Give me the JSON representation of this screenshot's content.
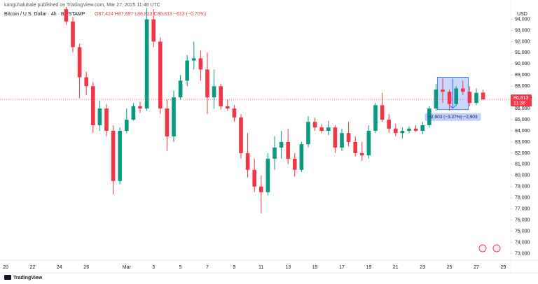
{
  "chart_data": {
    "type": "candlestick",
    "publisher": "kanguhalubale published on TradingView.com, Mar 27, 2025 11:48 UTC",
    "symbol": "Bitcoin / U.S. Dollar · 4h · BITSTAMP",
    "ohlc_text": "O87,424 H87,697 L86,813 C86,813 −613 (−0.70%)",
    "currency": "USD",
    "brand": "TradingView",
    "last_price_label": "86,813",
    "countdown": "11:38",
    "up_color": "#089981",
    "down_color": "#f23645",
    "measure": {
      "label": "−2,903 (−3.27%) −2,903",
      "high": 88800,
      "low": 85900,
      "color": "#2962ff"
    },
    "categories": [
      "20",
      null,
      null,
      null,
      "22",
      null,
      null,
      null,
      "24",
      null,
      null,
      null,
      "26",
      null,
      null,
      null,
      null,
      null,
      "Mar",
      null,
      null,
      null,
      "3",
      null,
      null,
      null,
      "5",
      null,
      null,
      null,
      "7",
      null,
      null,
      null,
      "9",
      null,
      null,
      null,
      "11",
      null,
      null,
      null,
      "13",
      null,
      null,
      null,
      "15",
      null,
      null,
      null,
      "17",
      null,
      null,
      null,
      "19",
      null,
      null,
      null,
      "21",
      null,
      null,
      null,
      "23",
      null,
      null,
      null,
      "25",
      null,
      null,
      null,
      "27",
      null,
      null,
      null,
      "29",
      null
    ],
    "open": [
      null,
      null,
      null,
      null,
      null,
      null,
      null,
      null,
      null,
      94900,
      93800,
      91500,
      88800,
      88000,
      84500,
      86000,
      84000,
      79500,
      84000,
      85000,
      86200,
      86000,
      94000,
      92000,
      86000,
      83500,
      87000,
      88500,
      90300,
      90500,
      89500,
      87000,
      88000,
      86200,
      86000,
      85200,
      82000,
      80500,
      79000,
      78500,
      81500,
      82500,
      83000,
      81500,
      80500,
      82800,
      84800,
      84300,
      84000,
      84300,
      82500,
      83800,
      83000,
      82000,
      81800,
      84000,
      86300,
      85000,
      84200,
      83800,
      84000,
      84200,
      84000,
      84500,
      86000,
      87700,
      87500,
      86400,
      87800,
      87500,
      86500,
      87424,
      null,
      null,
      null,
      null
    ],
    "high": [
      null,
      null,
      null,
      null,
      null,
      null,
      null,
      null,
      null,
      95100,
      94200,
      91800,
      89300,
      88400,
      86700,
      86400,
      84500,
      84300,
      86000,
      86500,
      86600,
      95000,
      94900,
      92400,
      86800,
      87600,
      89000,
      90800,
      92000,
      91200,
      91000,
      89500,
      88200,
      86800,
      86300,
      85500,
      83800,
      81500,
      80000,
      82000,
      83500,
      84000,
      84200,
      82000,
      83000,
      85300,
      85200,
      84600,
      84900,
      84500,
      84200,
      84800,
      83500,
      83000,
      84500,
      86500,
      87400,
      85500,
      84600,
      84300,
      84400,
      84500,
      84800,
      86200,
      88200,
      88700,
      87700,
      88000,
      88500,
      88000,
      87800,
      87697,
      null,
      null,
      null,
      null
    ],
    "low": [
      null,
      null,
      null,
      null,
      null,
      null,
      null,
      null,
      null,
      93500,
      91000,
      86900,
      87200,
      83800,
      84000,
      83500,
      78300,
      79200,
      83800,
      84900,
      85600,
      85800,
      91500,
      85500,
      82200,
      83000,
      86800,
      88000,
      89500,
      88500,
      85500,
      86000,
      85900,
      85800,
      84800,
      81500,
      79800,
      78500,
      76600,
      78200,
      80500,
      81500,
      81000,
      79900,
      80300,
      82500,
      84000,
      83800,
      83600,
      82000,
      82200,
      82600,
      81700,
      81300,
      81500,
      83800,
      84800,
      83800,
      83500,
      83300,
      83800,
      83900,
      83700,
      84300,
      85800,
      86500,
      85800,
      86200,
      87200,
      86200,
      86300,
      86813,
      null,
      null,
      null,
      null
    ],
    "close": [
      null,
      null,
      null,
      null,
      null,
      null,
      null,
      null,
      null,
      93800,
      91500,
      88800,
      88000,
      84500,
      86000,
      84000,
      79500,
      84000,
      85000,
      86200,
      86000,
      94000,
      92000,
      86000,
      83500,
      87000,
      88500,
      90300,
      90500,
      89500,
      87000,
      88000,
      86200,
      86000,
      85200,
      82000,
      80500,
      79000,
      78500,
      81500,
      82500,
      83000,
      81500,
      80500,
      82800,
      84800,
      84300,
      84000,
      84300,
      82500,
      83800,
      83000,
      82000,
      81800,
      84000,
      86300,
      85000,
      84200,
      83800,
      84000,
      84200,
      84000,
      84500,
      86000,
      87700,
      87500,
      86400,
      87800,
      87500,
      86500,
      87400,
      86813,
      null,
      null,
      null,
      null
    ],
    "ylim": [
      72400,
      95100
    ],
    "yticks": [
      {
        "value": 73000,
        "label": "73,000"
      },
      {
        "value": 74000,
        "label": "74,000"
      },
      {
        "value": 75000,
        "label": "75,000"
      },
      {
        "value": 76000,
        "label": "76,000"
      },
      {
        "value": 77000,
        "label": "77,000"
      },
      {
        "value": 78000,
        "label": "78,000"
      },
      {
        "value": 79000,
        "label": "79,000"
      },
      {
        "value": 80000,
        "label": "80,000"
      },
      {
        "value": 81000,
        "label": "81,000"
      },
      {
        "value": 82000,
        "label": "82,000"
      },
      {
        "value": 83000,
        "label": "83,000"
      },
      {
        "value": 84000,
        "label": "84,000"
      },
      {
        "value": 85000,
        "label": "85,000"
      },
      {
        "value": 86000,
        "label": "86,000"
      },
      {
        "value": 87000,
        "label": "87,000"
      },
      {
        "value": 88000,
        "label": "88,000"
      },
      {
        "value": 89000,
        "label": "89,000"
      },
      {
        "value": 90000,
        "label": "90,000"
      },
      {
        "value": 91000,
        "label": "91,000"
      },
      {
        "value": 92000,
        "label": "92,000"
      },
      {
        "value": 93000,
        "label": "93,000"
      },
      {
        "value": 94000,
        "label": "94,000"
      }
    ]
  }
}
